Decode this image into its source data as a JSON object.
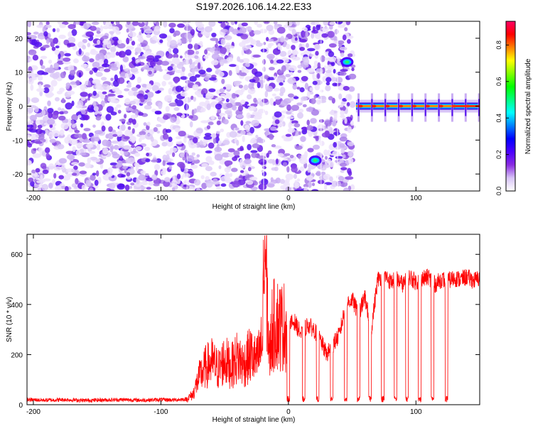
{
  "chart_data": [
    {
      "type": "heatmap",
      "title": "S197.2026.106.14.22.E33",
      "xlabel": "Height of straight line (km)",
      "ylabel": "Frequency (Hz)",
      "xlim": [
        -205,
        150
      ],
      "ylim": [
        -25,
        25
      ],
      "xticks": [
        -200,
        -100,
        0,
        100
      ],
      "yticks": [
        -20,
        -10,
        0,
        10,
        20
      ],
      "colorbar": {
        "label": "Normalized spectral amplitude",
        "range": [
          0,
          0.93
        ],
        "ticks": [
          0.0,
          0.2,
          0.4,
          0.6,
          0.8
        ],
        "colors": [
          "#ffffff",
          "#d8c4f7",
          "#8a2be2",
          "#4b00ff",
          "#0000ff",
          "#0080ff",
          "#00ffff",
          "#00ff80",
          "#00ff00",
          "#80ff00",
          "#ffff00",
          "#ff8000",
          "#ff0000",
          "#ff0066"
        ]
      },
      "regions": [
        {
          "name": "noise",
          "x_range": [
            -205,
            53
          ],
          "freq_range": [
            -25,
            25
          ],
          "amplitude_range": [
            0.0,
            0.12
          ]
        },
        {
          "name": "carrier",
          "x_range": [
            53,
            150
          ],
          "freq": 0,
          "amplitude_range": [
            0.3,
            0.9
          ]
        },
        {
          "name": "doppler-blob-upper",
          "x": 46,
          "freq": 13,
          "amplitude": 0.35
        },
        {
          "name": "doppler-blob-lower",
          "x": 21,
          "freq": -16,
          "amplitude": 0.3
        }
      ]
    },
    {
      "type": "line",
      "xlabel": "Height of straight line (km)",
      "ylabel": "SNR (10 * v/v)",
      "xlim": [
        -205,
        150
      ],
      "ylim": [
        0,
        680
      ],
      "xticks": [
        -200,
        -100,
        0,
        100
      ],
      "yticks": [
        0,
        200,
        400,
        600
      ],
      "series": [
        {
          "name": "SNR",
          "color": "#ff0000",
          "x": [
            -205,
            -190,
            -175,
            -160,
            -145,
            -130,
            -115,
            -100,
            -90,
            -80,
            -75,
            -70,
            -65,
            -60,
            -55,
            -50,
            -45,
            -40,
            -35,
            -30,
            -25,
            -20,
            -18,
            -15,
            -13,
            -10,
            -5,
            0,
            5,
            10,
            15,
            20,
            25,
            30,
            35,
            40,
            45,
            50,
            55,
            60,
            65,
            70,
            75,
            80,
            85,
            90,
            95,
            100,
            105,
            110,
            115,
            120,
            125,
            130,
            135,
            140,
            145,
            150
          ],
          "y": [
            20,
            18,
            20,
            17,
            19,
            20,
            18,
            20,
            19,
            22,
            40,
            110,
            150,
            170,
            140,
            180,
            150,
            190,
            160,
            200,
            170,
            250,
            660,
            180,
            300,
            330,
            310,
            320,
            330,
            280,
            320,
            300,
            260,
            200,
            240,
            280,
            400,
            420,
            360,
            430,
            300,
            500,
            520,
            490,
            500,
            480,
            510,
            490,
            500,
            510,
            480,
            500,
            495,
            505,
            500,
            510,
            495,
            505
          ]
        }
      ],
      "dropouts_x": [
        0,
        12,
        23,
        34,
        45,
        55,
        64,
        74,
        84,
        93,
        103,
        113,
        124
      ]
    }
  ]
}
